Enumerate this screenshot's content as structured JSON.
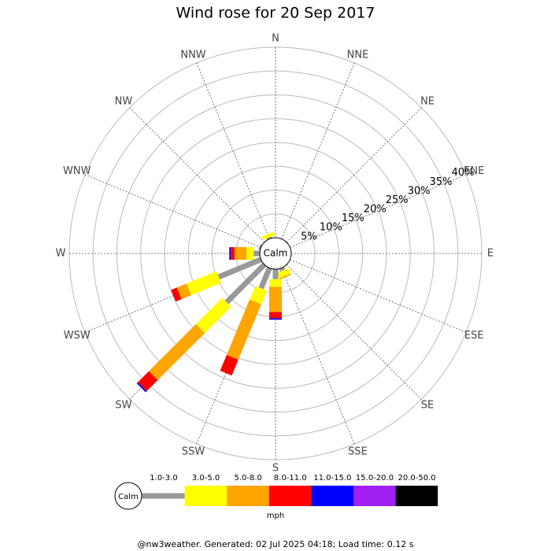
{
  "chart_data": {
    "type": "windrose",
    "title": "Wind rose for 20 Sep 2017",
    "calm_label": "Calm",
    "unit": "mph",
    "footer": "@nw3weather. Generated: 02 Jul 2025 04:18; Load time: 0.12 s",
    "directions": [
      "N",
      "NNE",
      "NE",
      "ENE",
      "E",
      "ESE",
      "SE",
      "SSE",
      "S",
      "SSW",
      "SW",
      "WSW",
      "W",
      "WNW",
      "NW",
      "NNW"
    ],
    "rlim": [
      0,
      40
    ],
    "rticks": [
      {
        "value": 5,
        "label": "5%"
      },
      {
        "value": 10,
        "label": "10%"
      },
      {
        "value": 15,
        "label": "15%"
      },
      {
        "value": 20,
        "label": "20%"
      },
      {
        "value": 25,
        "label": "25%"
      },
      {
        "value": 30,
        "label": "30%"
      },
      {
        "value": 35,
        "label": "35%"
      },
      {
        "value": 40,
        "label": "40%"
      }
    ],
    "series": [
      {
        "name": "1.0-3.0",
        "color": "#999999",
        "values": [
          0,
          0,
          0,
          0,
          0,
          0,
          0,
          0.6,
          2.1,
          4.6,
          11.2,
          9.6,
          1.3,
          0.4,
          0,
          0.3
        ]
      },
      {
        "name": "3.0-5.0",
        "color": "#ffff00",
        "values": [
          0,
          0,
          0,
          0,
          0,
          0,
          0,
          1.2,
          1.6,
          3.1,
          7.8,
          6.8,
          1.5,
          0,
          0,
          0.8
        ]
      },
      {
        "name": "5.0-8.0",
        "color": "#ffa500",
        "values": [
          0,
          0,
          0,
          0,
          0,
          0,
          0,
          0.3,
          5.3,
          12.6,
          14,
          2.2,
          2.5,
          0,
          0,
          0
        ]
      },
      {
        "name": "8.0-11.0",
        "color": "#ff0000",
        "values": [
          0,
          0,
          0,
          0,
          0,
          0,
          0,
          0,
          1.3,
          3.6,
          3.3,
          1.3,
          0.8,
          0,
          0,
          0
        ]
      },
      {
        "name": "11.0-15.0",
        "color": "#0000ff",
        "values": [
          0,
          0,
          0,
          0,
          0,
          0,
          0,
          0,
          0.3,
          0,
          0.3,
          0,
          0.3,
          0,
          0,
          0
        ]
      },
      {
        "name": "15.0-20.0",
        "color": "#a020f0",
        "values": [
          0,
          0,
          0,
          0,
          0,
          0,
          0,
          0,
          0,
          0,
          0,
          0,
          0,
          0,
          0,
          0
        ]
      },
      {
        "name": "20.0-50.0",
        "color": "#000000",
        "values": [
          0,
          0,
          0,
          0,
          0,
          0,
          0,
          0,
          0,
          0,
          0,
          0,
          0,
          0,
          0,
          0
        ]
      }
    ]
  }
}
